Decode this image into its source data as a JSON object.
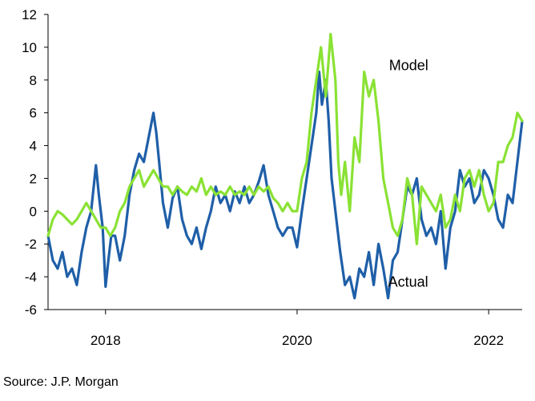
{
  "chart_data": {
    "type": "line",
    "title": "",
    "xlabel": "",
    "ylabel": "",
    "xlim": [
      2017.4,
      2022.35
    ],
    "ylim": [
      -6,
      12
    ],
    "y_ticks": [
      12,
      10,
      8,
      6,
      4,
      2,
      0,
      -2,
      -4,
      -6
    ],
    "x_ticks": [
      {
        "value": 2018,
        "label": "2018"
      },
      {
        "value": 2020,
        "label": "2020"
      },
      {
        "value": 2022,
        "label": "2022"
      }
    ],
    "grid": false,
    "legend": "none",
    "annotations": [
      {
        "text": "Model",
        "x": 2020.96,
        "y": 8.6
      },
      {
        "text": "Actual",
        "x": 2020.95,
        "y": -4.6
      }
    ],
    "series": [
      {
        "name": "Actual",
        "color": "#1f5fa8",
        "x": [
          2017.4,
          2017.45,
          2017.5,
          2017.55,
          2017.6,
          2017.65,
          2017.7,
          2017.75,
          2017.8,
          2017.85,
          2017.9,
          2017.93,
          2017.97,
          2018.0,
          2018.03,
          2018.06,
          2018.1,
          2018.15,
          2018.2,
          2018.25,
          2018.3,
          2018.35,
          2018.4,
          2018.45,
          2018.5,
          2018.53,
          2018.56,
          2018.6,
          2018.65,
          2018.7,
          2018.75,
          2018.8,
          2018.85,
          2018.9,
          2018.95,
          2019.0,
          2019.05,
          2019.1,
          2019.15,
          2019.2,
          2019.25,
          2019.3,
          2019.35,
          2019.4,
          2019.45,
          2019.5,
          2019.55,
          2019.6,
          2019.65,
          2019.7,
          2019.75,
          2019.8,
          2019.85,
          2019.9,
          2019.95,
          2020.0,
          2020.05,
          2020.1,
          2020.15,
          2020.2,
          2020.23,
          2020.26,
          2020.3,
          2020.33,
          2020.36,
          2020.4,
          2020.45,
          2020.5,
          2020.55,
          2020.6,
          2020.65,
          2020.7,
          2020.75,
          2020.8,
          2020.85,
          2020.9,
          2020.95,
          2021.0,
          2021.05,
          2021.1,
          2021.15,
          2021.2,
          2021.25,
          2021.3,
          2021.35,
          2021.4,
          2021.45,
          2021.5,
          2021.55,
          2021.6,
          2021.65,
          2021.7,
          2021.75,
          2021.8,
          2021.85,
          2021.9,
          2021.95,
          2022.0,
          2022.05,
          2022.1,
          2022.15,
          2022.2,
          2022.25,
          2022.3,
          2022.35
        ],
        "y": [
          -1.5,
          -3.0,
          -3.5,
          -2.5,
          -4.0,
          -3.5,
          -4.5,
          -2.5,
          -1.0,
          0.0,
          2.8,
          1.0,
          -1.0,
          -4.6,
          -3.0,
          -1.5,
          -1.5,
          -3.0,
          -1.5,
          1.0,
          2.5,
          3.5,
          3.0,
          4.5,
          6.0,
          4.8,
          3.0,
          0.5,
          -1.0,
          0.8,
          1.5,
          -0.5,
          -1.5,
          -2.0,
          -1.0,
          -2.3,
          -1.0,
          0.0,
          1.5,
          0.5,
          1.0,
          0.0,
          1.2,
          0.5,
          1.5,
          0.5,
          1.0,
          1.8,
          2.8,
          1.0,
          0.0,
          -1.0,
          -1.5,
          -1.0,
          -1.0,
          -2.2,
          0.0,
          2.0,
          4.0,
          6.0,
          8.5,
          6.5,
          8.0,
          5.5,
          2.0,
          0.0,
          -2.5,
          -4.5,
          -4.0,
          -5.3,
          -3.5,
          -4.0,
          -2.5,
          -4.5,
          -2.0,
          -3.5,
          -5.3,
          -3.0,
          -2.5,
          -0.5,
          1.5,
          1.0,
          2.0,
          -0.5,
          -1.5,
          -1.0,
          -2.0,
          0.0,
          -3.5,
          -1.0,
          0.0,
          2.5,
          1.5,
          2.0,
          0.5,
          1.0,
          2.5,
          2.0,
          1.0,
          -0.5,
          -1.0,
          1.0,
          0.5,
          3.0,
          5.5
        ]
      },
      {
        "name": "Model",
        "color": "#8ae234",
        "x": [
          2017.4,
          2017.45,
          2017.5,
          2017.55,
          2017.6,
          2017.65,
          2017.7,
          2017.75,
          2017.8,
          2017.85,
          2017.9,
          2017.95,
          2018.0,
          2018.05,
          2018.1,
          2018.15,
          2018.2,
          2018.25,
          2018.3,
          2018.35,
          2018.4,
          2018.45,
          2018.5,
          2018.55,
          2018.6,
          2018.65,
          2018.7,
          2018.75,
          2018.8,
          2018.85,
          2018.9,
          2018.95,
          2019.0,
          2019.05,
          2019.1,
          2019.15,
          2019.2,
          2019.25,
          2019.3,
          2019.35,
          2019.4,
          2019.45,
          2019.5,
          2019.55,
          2019.6,
          2019.65,
          2019.7,
          2019.75,
          2019.8,
          2019.85,
          2019.9,
          2019.95,
          2020.0,
          2020.05,
          2020.1,
          2020.15,
          2020.2,
          2020.25,
          2020.3,
          2020.35,
          2020.4,
          2020.43,
          2020.46,
          2020.5,
          2020.55,
          2020.6,
          2020.65,
          2020.7,
          2020.75,
          2020.8,
          2020.85,
          2020.9,
          2020.95,
          2021.0,
          2021.05,
          2021.1,
          2021.15,
          2021.2,
          2021.25,
          2021.3,
          2021.35,
          2021.4,
          2021.45,
          2021.5,
          2021.55,
          2021.6,
          2021.65,
          2021.7,
          2021.75,
          2021.8,
          2021.85,
          2021.9,
          2021.95,
          2022.0,
          2022.05,
          2022.1,
          2022.15,
          2022.2,
          2022.25,
          2022.3,
          2022.35
        ],
        "y": [
          -1.5,
          -0.5,
          0.0,
          -0.2,
          -0.5,
          -0.8,
          -0.5,
          0.0,
          0.5,
          0.0,
          -0.5,
          -1.0,
          -1.0,
          -1.5,
          -1.0,
          0.0,
          0.5,
          1.5,
          2.0,
          2.5,
          1.5,
          2.0,
          2.5,
          2.0,
          1.5,
          1.5,
          1.0,
          1.5,
          1.2,
          1.0,
          1.5,
          1.2,
          2.0,
          1.0,
          1.5,
          1.0,
          1.2,
          1.0,
          1.5,
          1.0,
          1.2,
          1.0,
          1.5,
          1.0,
          1.5,
          1.2,
          1.5,
          0.8,
          0.5,
          0.0,
          0.5,
          0.0,
          0.0,
          2.0,
          3.0,
          6.0,
          8.0,
          10.0,
          7.0,
          10.8,
          8.0,
          3.0,
          1.0,
          3.0,
          0.0,
          4.5,
          3.0,
          8.5,
          7.0,
          8.0,
          5.5,
          2.0,
          0.5,
          -1.0,
          -1.5,
          -0.5,
          2.0,
          1.0,
          -2.0,
          1.5,
          1.0,
          0.5,
          0.0,
          1.0,
          -1.0,
          -0.5,
          1.0,
          0.0,
          2.0,
          2.5,
          1.5,
          2.5,
          1.0,
          0.0,
          0.5,
          3.0,
          3.0,
          4.0,
          4.5,
          6.0,
          5.5
        ]
      }
    ]
  },
  "source": "Source: J.P. Morgan"
}
